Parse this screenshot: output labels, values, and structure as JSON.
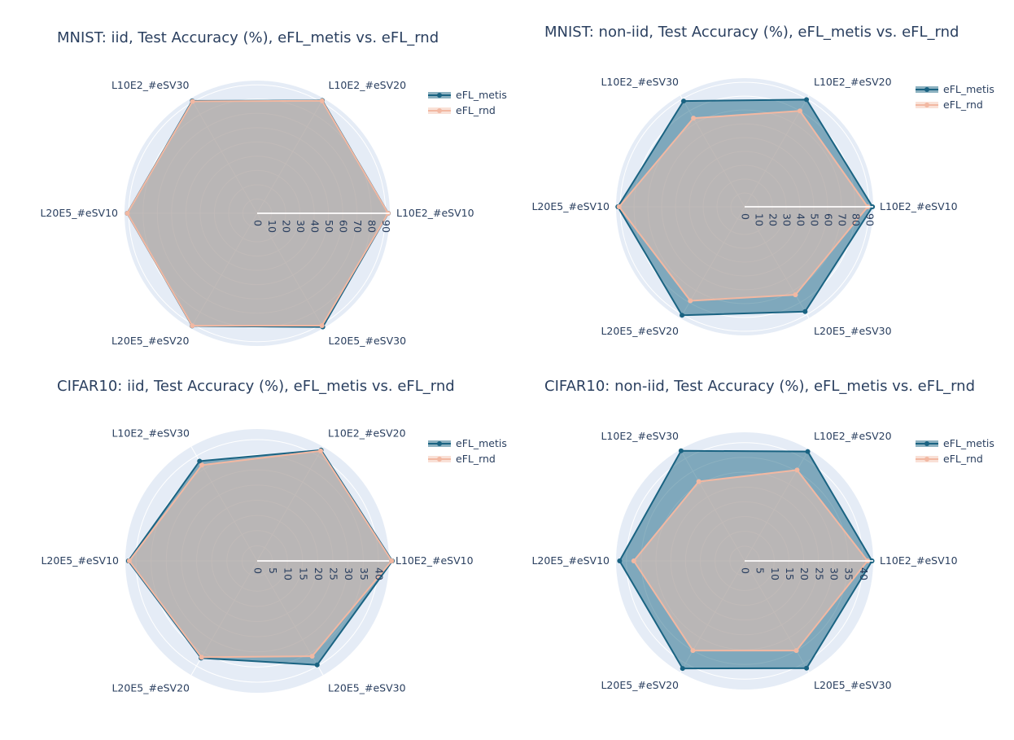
{
  "colors": {
    "metis_line": "#1a6382",
    "metis_fill": "#1a6382",
    "rnd_line": "#f2b8a2",
    "rnd_fill": "#f4c4b0",
    "polar_bg": "#e5ecf6",
    "grid": "#ffffff",
    "text": "#2a3f5f"
  },
  "chart_data": [
    {
      "type": "radar",
      "title": "MNIST: iid, Test Accuracy (%), eFL_metis vs. eFL_rnd",
      "categories": [
        "L10E2_#eSV10",
        "L10E2_#eSV20",
        "L10E2_#eSV30",
        "L20E5_#eSV10",
        "L20E5_#eSV20",
        "L20E5_#eSV30"
      ],
      "radial_ticks": [
        "0",
        "10",
        "20",
        "30",
        "40",
        "50",
        "60",
        "70",
        "80",
        "90"
      ],
      "radial_tick_values": [
        0,
        10,
        20,
        30,
        40,
        50,
        60,
        70,
        80,
        90
      ],
      "radial_range": [
        0,
        93
      ],
      "series": [
        {
          "name": "eFL_metis",
          "values": [
            91.9,
            91.3,
            91.0,
            91.1,
            91.2,
            92.0
          ]
        },
        {
          "name": "eFL_rnd",
          "values": [
            91.8,
            91.0,
            90.6,
            91.0,
            91.0,
            90.9
          ]
        }
      ]
    },
    {
      "type": "radar",
      "title": "MNIST: non-iid, Test Accuracy (%), eFL_metis vs. eFL_rnd",
      "categories": [
        "L10E2_#eSV10",
        "L10E2_#eSV20",
        "L10E2_#eSV30",
        "L20E5_#eSV10",
        "L20E5_#eSV20",
        "L20E5_#eSV30"
      ],
      "radial_ticks": [
        "0",
        "10",
        "20",
        "30",
        "40",
        "50",
        "60",
        "70",
        "80",
        "90"
      ],
      "radial_tick_values": [
        0,
        10,
        20,
        30,
        40,
        50,
        60,
        70,
        80,
        90
      ],
      "radial_range": [
        0,
        93
      ],
      "series": [
        {
          "name": "eFL_metis",
          "values": [
            92.5,
            89.5,
            88.3,
            91.7,
            90.6,
            87.5
          ]
        },
        {
          "name": "eFL_rnd",
          "values": [
            89.0,
            80.0,
            74.0,
            90.8,
            78.5,
            73.5
          ]
        }
      ]
    },
    {
      "type": "radar",
      "title": "CIFAR10: iid, Test Accuracy (%), eFL_metis vs. eFL_rnd",
      "categories": [
        "L10E2_#eSV10",
        "L10E2_#eSV20",
        "L10E2_#eSV30",
        "L20E5_#eSV10",
        "L20E5_#eSV20",
        "L20E5_#eSV30"
      ],
      "radial_ticks": [
        "0",
        "5",
        "10",
        "15",
        "20",
        "25",
        "30",
        "35",
        "40"
      ],
      "radial_tick_values": [
        0,
        5,
        10,
        15,
        20,
        25,
        30,
        35,
        40
      ],
      "radial_range": [
        0,
        43.5
      ],
      "series": [
        {
          "name": "eFL_metis",
          "values": [
            44.6,
            42.2,
            38.0,
            42.5,
            37.0,
            39.6
          ]
        },
        {
          "name": "eFL_rnd",
          "values": [
            44.4,
            41.9,
            36.5,
            42.2,
            36.7,
            36.3
          ]
        }
      ]
    },
    {
      "type": "radar",
      "title": "CIFAR10: non-iid, Test Accuracy (%), eFL_metis vs. eFL_rnd",
      "categories": [
        "L10E2_#eSV10",
        "L10E2_#eSV20",
        "L10E2_#eSV30",
        "L20E5_#eSV10",
        "L20E5_#eSV20",
        "L20E5_#eSV30"
      ],
      "radial_ticks": [
        "0",
        "5",
        "10",
        "15",
        "20",
        "25",
        "30",
        "35",
        "40"
      ],
      "radial_tick_values": [
        0,
        5,
        10,
        15,
        20,
        25,
        30,
        35,
        40
      ],
      "radial_range": [
        0,
        43.5
      ],
      "series": [
        {
          "name": "eFL_metis",
          "values": [
            43.1,
            42.7,
            43.0,
            42.3,
            42.0,
            41.9
          ]
        },
        {
          "name": "eFL_rnd",
          "values": [
            41.6,
            35.5,
            31.0,
            37.5,
            35.0,
            35.0
          ]
        }
      ]
    }
  ]
}
